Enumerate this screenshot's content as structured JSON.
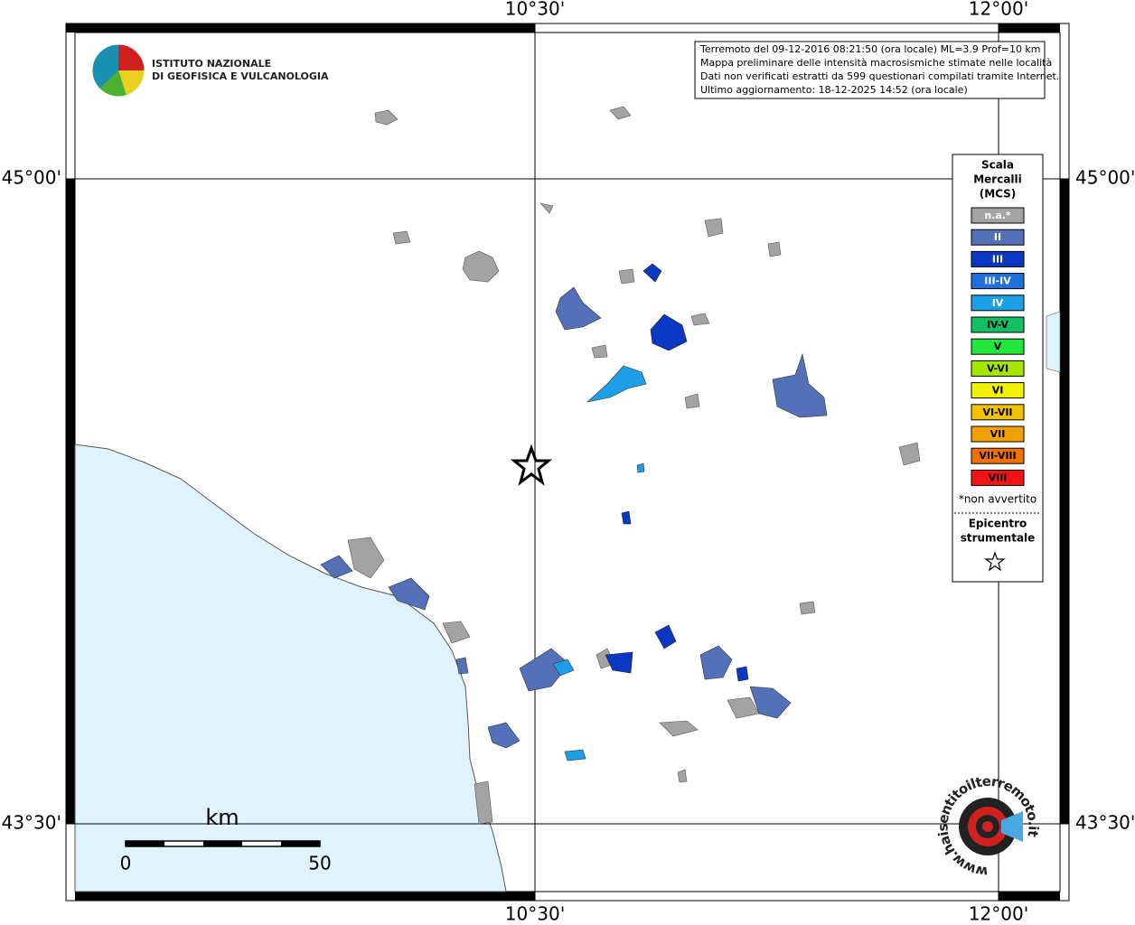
{
  "map": {
    "lon_labels": [
      "10°30'",
      "12°00'"
    ],
    "lat_labels": [
      "45°00'",
      "43°30'"
    ],
    "info": [
      "Terremoto del 09-12-2016 08:21:50 (ora locale) ML=3.9 Prof=10 km",
      "Mappa preliminare delle intensità macrosismiche stimate nelle località",
      "Dati non verificati estratti da 599 questionari compilati tramite Internet.",
      "Ultimo aggiornamento: 18-12-2025 14:52 (ora locale)"
    ],
    "institute": [
      "ISTITUTO NAZIONALE",
      "DI GEOFISICA E VULCANOLOGIA"
    ],
    "legend": {
      "title": [
        "Scala",
        "Mercalli",
        "(MCS)"
      ],
      "items": [
        {
          "label": "n.a.*",
          "color": "#a3a3a3"
        },
        {
          "label": "II",
          "color": "#5470b8"
        },
        {
          "label": "III",
          "color": "#0b38c2"
        },
        {
          "label": "III-IV",
          "color": "#1f6fde"
        },
        {
          "label": "IV",
          "color": "#1c9fe6"
        },
        {
          "label": "IV-V",
          "color": "#12bf62"
        },
        {
          "label": "V",
          "color": "#22e63c"
        },
        {
          "label": "V-VI",
          "color": "#a6e600"
        },
        {
          "label": "VI",
          "color": "#f2f200"
        },
        {
          "label": "VI-VII",
          "color": "#f2c200"
        },
        {
          "label": "VII",
          "color": "#f2a200"
        },
        {
          "label": "VII-VIII",
          "color": "#f27000"
        },
        {
          "label": "VIII",
          "color": "#f21414"
        }
      ],
      "footnote": "*non avvertito",
      "epicenter": [
        "Epicentro",
        "strumentale"
      ]
    },
    "scale": {
      "unit": "km",
      "start": "0",
      "end": "50"
    },
    "site": "www.haisentitoilterremoto.it"
  }
}
